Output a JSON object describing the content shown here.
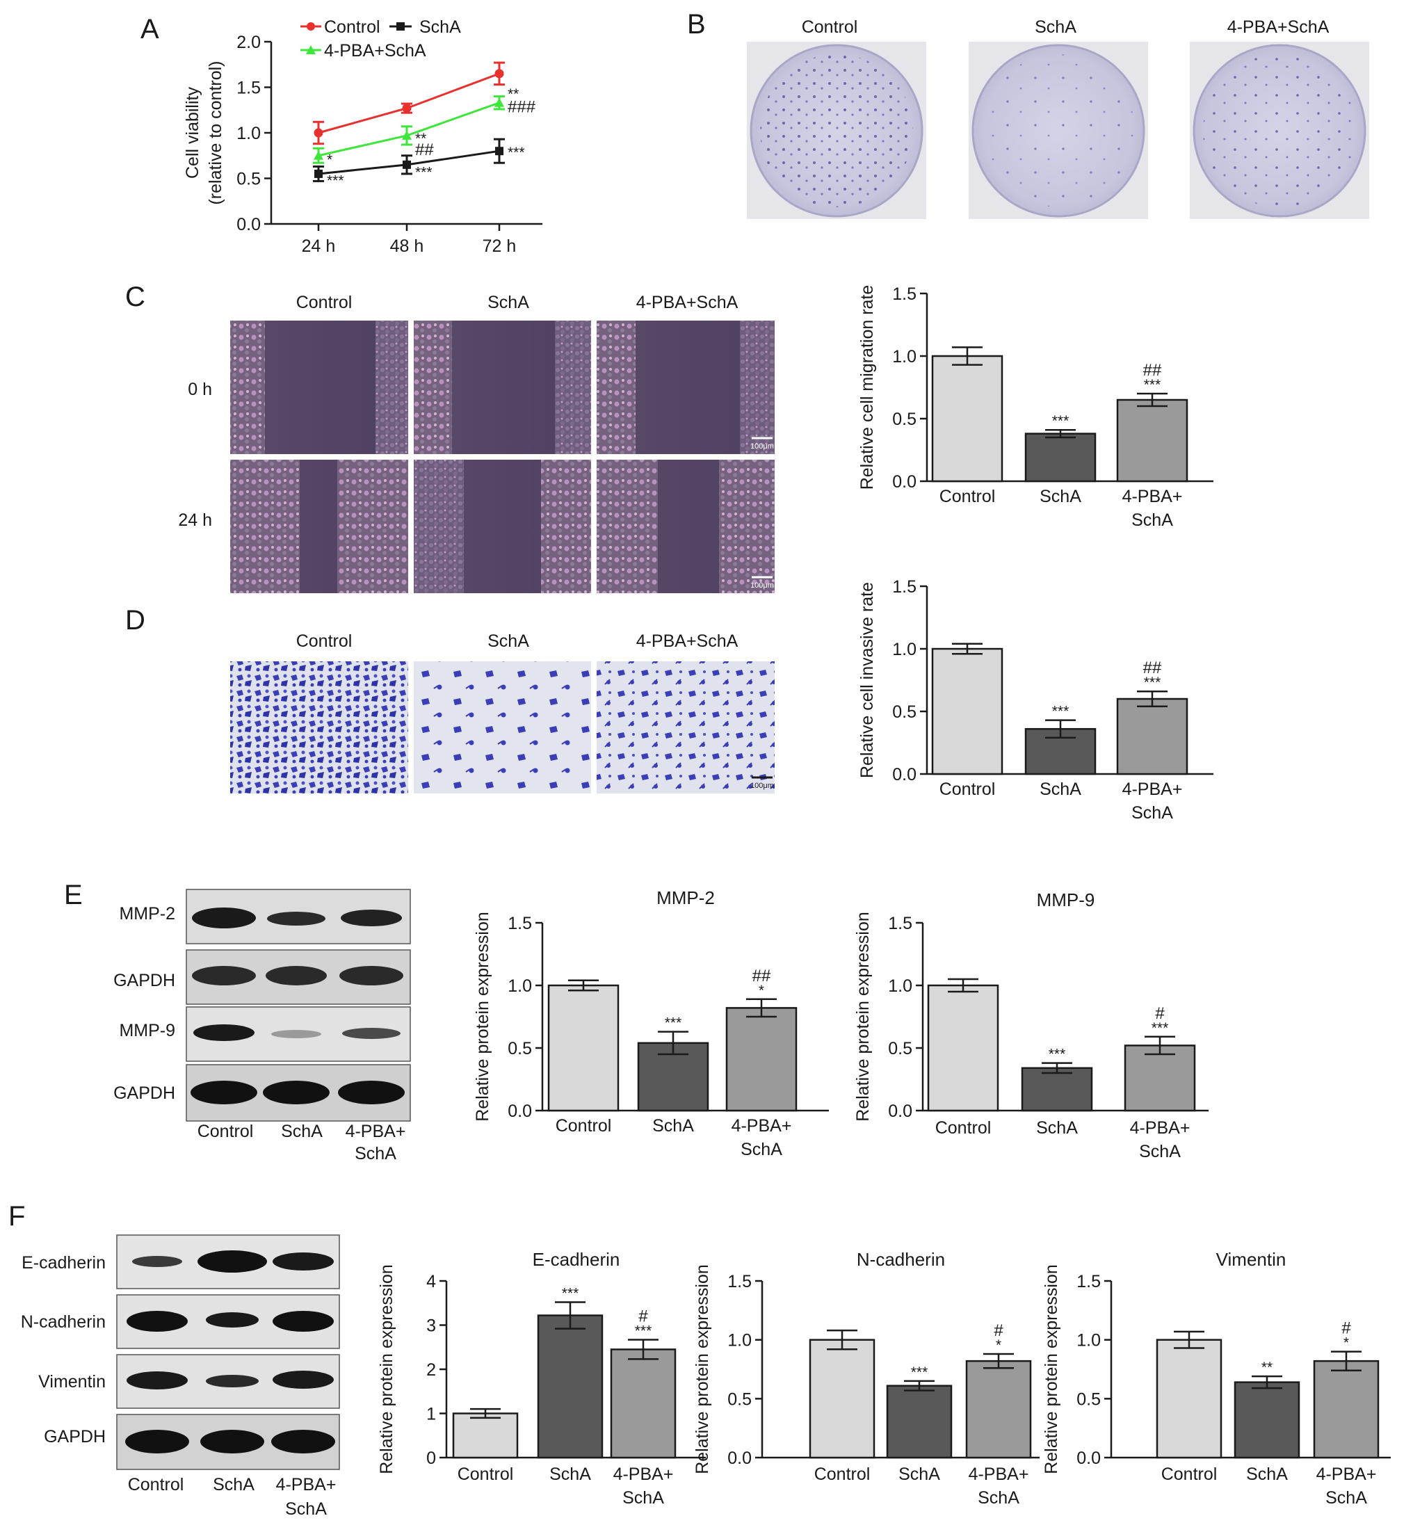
{
  "panels": [
    "A",
    "B",
    "C",
    "D",
    "E",
    "F"
  ],
  "colony_images": {
    "labels": [
      "Control",
      "SchA",
      "4-PBA+SchA"
    ]
  },
  "wound_images": {
    "labels": [
      "Control",
      "SchA",
      "4-PBA+SchA"
    ],
    "time_labels": [
      "0 h",
      "24 h"
    ],
    "scale_bar": "100μm"
  },
  "transwell_images": {
    "labels": [
      "Control",
      "SchA",
      "4-PBA+SchA"
    ],
    "scale_bar": "100μm"
  },
  "blot_E": {
    "rows": [
      "MMP-2",
      "GAPDH",
      "MMP-9",
      "GAPDH"
    ],
    "lanes": [
      "Control",
      "SchA",
      "4-PBA+",
      "SchA"
    ]
  },
  "blot_F": {
    "rows": [
      "E-cadherin",
      "N-cadherin",
      "Vimentin",
      "GAPDH"
    ],
    "lanes": [
      "Control",
      "SchA",
      "4-PBA+",
      "SchA"
    ]
  },
  "colors": {
    "control_line": "#e8312f",
    "scha_line": "#1a1a1a",
    "pba_line": "#3ee63a",
    "bar_control": "#d9d9d9",
    "bar_scha": "#595959",
    "bar_pba": "#9a9a9a"
  },
  "chart_data": [
    {
      "id": "A",
      "type": "line",
      "x": [
        "24 h",
        "48 h",
        "72 h"
      ],
      "ylabel": "Cell viability",
      "ylabel2": "(relative to control)",
      "ylim": [
        0,
        2.0
      ],
      "yticks": [
        "0.0",
        "0.5",
        "1.0",
        "1.5",
        "2.0"
      ],
      "legend": [
        "Control",
        "SchA",
        "4-PBA+SchA"
      ],
      "series": [
        {
          "name": "Control",
          "values": [
            1.0,
            1.27,
            1.65
          ],
          "errors": [
            0.12,
            0.05,
            0.12
          ]
        },
        {
          "name": "4-PBA+SchA",
          "values": [
            0.75,
            0.97,
            1.33
          ],
          "errors": [
            0.08,
            0.1,
            0.07
          ]
        },
        {
          "name": "SchA",
          "values": [
            0.55,
            0.65,
            0.8
          ],
          "errors": [
            0.08,
            0.1,
            0.13
          ]
        }
      ],
      "annotations": [
        {
          "text": "*",
          "x": 0,
          "y": 0.7
        },
        {
          "text": "***",
          "x": 0,
          "y": 0.47
        },
        {
          "text": "**",
          "x": 1,
          "y": 0.93
        },
        {
          "text": "##",
          "x": 1,
          "y": 0.8
        },
        {
          "text": "***",
          "x": 1,
          "y": 0.56
        },
        {
          "text": "**",
          "x": 2,
          "y": 1.42
        },
        {
          "text": "###",
          "x": 2,
          "y": 1.27
        },
        {
          "text": "***",
          "x": 2,
          "y": 0.78
        }
      ]
    },
    {
      "id": "C",
      "type": "bar",
      "categories": [
        "Control",
        "SchA",
        "4-PBA+"
      ],
      "categories2": [
        "",
        "",
        "SchA"
      ],
      "values": [
        1.0,
        0.38,
        0.65
      ],
      "errors": [
        0.07,
        0.03,
        0.05
      ],
      "sig_line1": [
        "",
        "***",
        "***"
      ],
      "sig_line2": [
        "",
        "",
        "##"
      ],
      "ylabel": "Relative cell migration rate",
      "ylim": [
        0,
        1.5
      ],
      "yticks": [
        "0.0",
        "0.5",
        "1.0",
        "1.5"
      ]
    },
    {
      "id": "D",
      "type": "bar",
      "categories": [
        "Control",
        "SchA",
        "4-PBA+"
      ],
      "categories2": [
        "",
        "",
        "SchA"
      ],
      "values": [
        1.0,
        0.36,
        0.6
      ],
      "errors": [
        0.04,
        0.07,
        0.06
      ],
      "sig_line1": [
        "",
        "***",
        "***"
      ],
      "sig_line2": [
        "",
        "",
        "##"
      ],
      "ylabel": "Relative cell invasive rate",
      "ylim": [
        0,
        1.5
      ],
      "yticks": [
        "0.0",
        "0.5",
        "1.0",
        "1.5"
      ]
    },
    {
      "id": "E1",
      "type": "bar",
      "title": "MMP-2",
      "categories": [
        "Control",
        "SchA",
        "4-PBA+"
      ],
      "categories2": [
        "",
        "",
        "SchA"
      ],
      "values": [
        1.0,
        0.54,
        0.82
      ],
      "errors": [
        0.04,
        0.09,
        0.07
      ],
      "sig_line1": [
        "",
        "***",
        "*"
      ],
      "sig_line2": [
        "",
        "",
        "##"
      ],
      "ylabel": "Relative protein expression",
      "ylim": [
        0,
        1.5
      ],
      "yticks": [
        "0.0",
        "0.5",
        "1.0",
        "1.5"
      ]
    },
    {
      "id": "E2",
      "type": "bar",
      "title": "MMP-9",
      "categories": [
        "Control",
        "SchA",
        "4-PBA+"
      ],
      "categories2": [
        "",
        "",
        "SchA"
      ],
      "values": [
        1.0,
        0.34,
        0.52
      ],
      "errors": [
        0.05,
        0.04,
        0.07
      ],
      "sig_line1": [
        "",
        "***",
        "***"
      ],
      "sig_line2": [
        "",
        "",
        "#"
      ],
      "ylabel": "Relative protein expression",
      "ylim": [
        0,
        1.5
      ],
      "yticks": [
        "0.0",
        "0.5",
        "1.0",
        "1.5"
      ]
    },
    {
      "id": "F1",
      "type": "bar",
      "title": "E-cadherin",
      "categories": [
        "Control",
        "SchA",
        "4-PBA+"
      ],
      "categories2": [
        "",
        "",
        "SchA"
      ],
      "values": [
        1.0,
        3.22,
        2.45
      ],
      "errors": [
        0.1,
        0.3,
        0.22
      ],
      "sig_line1": [
        "",
        "***",
        "***"
      ],
      "sig_line2": [
        "",
        "",
        "#"
      ],
      "ylabel": "Relative protein expression",
      "ylim": [
        0,
        4
      ],
      "yticks": [
        "0",
        "1",
        "2",
        "3",
        "4"
      ]
    },
    {
      "id": "F2",
      "type": "bar",
      "title": "N-cadherin",
      "categories": [
        "Control",
        "SchA",
        "4-PBA+"
      ],
      "categories2": [
        "",
        "",
        "SchA"
      ],
      "values": [
        1.0,
        0.61,
        0.82
      ],
      "errors": [
        0.08,
        0.04,
        0.06
      ],
      "sig_line1": [
        "",
        "***",
        "*"
      ],
      "sig_line2": [
        "",
        "",
        "#"
      ],
      "ylabel": "Relative protein expression",
      "ylim": [
        0,
        1.5
      ],
      "yticks": [
        "0.0",
        "0.5",
        "1.0",
        "1.5"
      ]
    },
    {
      "id": "F3",
      "type": "bar",
      "title": "Vimentin",
      "categories": [
        "Control",
        "SchA",
        "4-PBA+"
      ],
      "categories2": [
        "",
        "",
        "SchA"
      ],
      "values": [
        1.0,
        0.64,
        0.82
      ],
      "errors": [
        0.07,
        0.05,
        0.08
      ],
      "sig_line1": [
        "",
        "**",
        "*"
      ],
      "sig_line2": [
        "",
        "",
        "#"
      ],
      "ylabel": "Relative protein expression",
      "ylim": [
        0,
        1.5
      ],
      "yticks": [
        "0.0",
        "0.5",
        "1.0",
        "1.5"
      ]
    }
  ]
}
